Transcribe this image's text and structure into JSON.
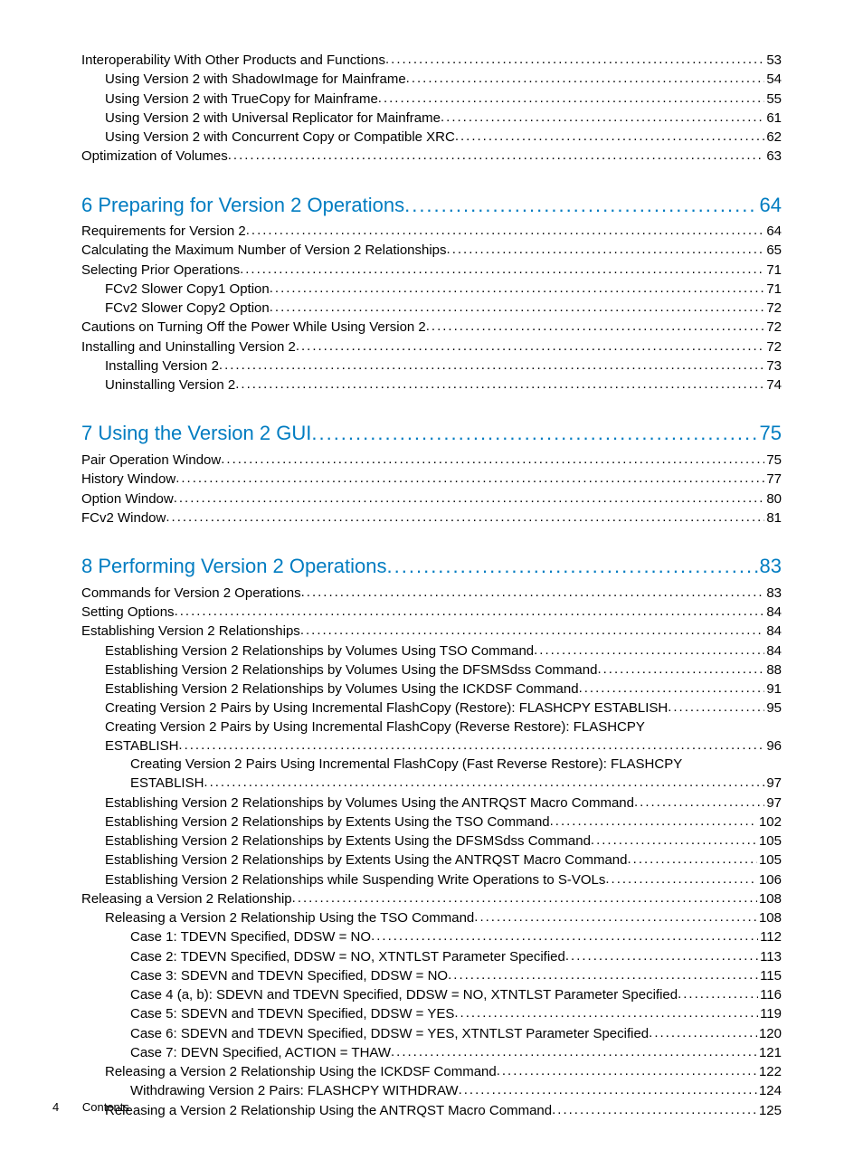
{
  "footer": {
    "page": "4",
    "label": "Contents"
  },
  "colors": {
    "link": "#007cc1",
    "text": "#000000",
    "bg": "#ffffff"
  },
  "entries": [
    {
      "indent": 0,
      "text": "Interoperability With Other Products and Functions",
      "page": "53"
    },
    {
      "indent": 1,
      "text": "Using Version 2 with ShadowImage for Mainframe",
      "page": "54"
    },
    {
      "indent": 1,
      "text": "Using Version 2 with TrueCopy for Mainframe",
      "page": "55"
    },
    {
      "indent": 1,
      "text": "Using Version 2 with Universal Replicator for Mainframe",
      "page": "61"
    },
    {
      "indent": 1,
      "text": "Using Version 2 with Concurrent Copy or Compatible XRC",
      "page": "62"
    },
    {
      "indent": 0,
      "text": "Optimization of Volumes",
      "page": "63"
    },
    {
      "chapter": true,
      "text": "6 Preparing for Version 2 Operations",
      "page": "64"
    },
    {
      "indent": 0,
      "text": "Requirements for Version 2",
      "page": "64"
    },
    {
      "indent": 0,
      "text": "Calculating the Maximum Number of Version 2 Relationships",
      "page": "65"
    },
    {
      "indent": 0,
      "text": "Selecting Prior Operations",
      "page": "71"
    },
    {
      "indent": 1,
      "text": "FCv2 Slower Copy1 Option",
      "page": "71"
    },
    {
      "indent": 1,
      "text": "FCv2 Slower Copy2 Option",
      "page": "72"
    },
    {
      "indent": 0,
      "text": "Cautions on Turning Off the Power While Using Version 2",
      "page": "72"
    },
    {
      "indent": 0,
      "text": "Installing and Uninstalling Version 2",
      "page": "72"
    },
    {
      "indent": 1,
      "text": "Installing Version 2",
      "page": "73"
    },
    {
      "indent": 1,
      "text": "Uninstalling Version 2",
      "page": "74"
    },
    {
      "chapter": true,
      "text": "7 Using the Version 2 GUI",
      "page": "75"
    },
    {
      "indent": 0,
      "text": "Pair Operation Window",
      "page": "75"
    },
    {
      "indent": 0,
      "text": "History Window",
      "page": "77"
    },
    {
      "indent": 0,
      "text": "Option Window",
      "page": "80"
    },
    {
      "indent": 0,
      "text": "FCv2 Window",
      "page": "81"
    },
    {
      "chapter": true,
      "text": "8 Performing Version 2 Operations",
      "page": "83"
    },
    {
      "indent": 0,
      "text": "Commands for Version 2 Operations",
      "page": "83"
    },
    {
      "indent": 0,
      "text": "Setting Options",
      "page": "84"
    },
    {
      "indent": 0,
      "text": "Establishing Version 2 Relationships",
      "page": "84"
    },
    {
      "indent": 1,
      "text": "Establishing Version 2 Relationships by Volumes Using TSO Command",
      "page": "84"
    },
    {
      "indent": 1,
      "text": "Establishing Version 2 Relationships by Volumes Using the DFSMSdss Command",
      "page": "88"
    },
    {
      "indent": 1,
      "text": "Establishing Version 2 Relationships by Volumes Using the ICKDSF Command",
      "page": "91"
    },
    {
      "indent": 1,
      "text": "Creating Version 2 Pairs by Using Incremental FlashCopy (Restore): FLASHCPY ESTABLISH",
      "page": "95"
    },
    {
      "indent": 1,
      "wrap": true,
      "textLines": [
        "Creating Version 2 Pairs by Using Incremental FlashCopy (Reverse Restore): FLASHCPY",
        "ESTABLISH"
      ],
      "page": "96"
    },
    {
      "indent": 2,
      "wrap": true,
      "textLines": [
        "Creating Version 2 Pairs Using Incremental FlashCopy (Fast Reverse Restore): FLASHCPY",
        "ESTABLISH"
      ],
      "page": "97"
    },
    {
      "indent": 1,
      "text": "Establishing Version 2 Relationships by Volumes Using the ANTRQST Macro Command",
      "page": "97"
    },
    {
      "indent": 1,
      "text": "Establishing Version 2 Relationships by Extents Using the TSO Command",
      "page": "102"
    },
    {
      "indent": 1,
      "text": "Establishing Version 2 Relationships by Extents Using the DFSMSdss Command",
      "page": "105"
    },
    {
      "indent": 1,
      "text": "Establishing Version 2 Relationships by Extents Using the ANTRQST Macro Command",
      "page": "105"
    },
    {
      "indent": 1,
      "text": "Establishing Version 2 Relationships while Suspending Write Operations to S-VOLs",
      "page": "106"
    },
    {
      "indent": 0,
      "text": "Releasing a Version 2 Relationship",
      "page": "108"
    },
    {
      "indent": 1,
      "text": "Releasing a Version 2 Relationship Using the TSO Command",
      "page": "108"
    },
    {
      "indent": 2,
      "text": "Case 1: TDEVN Specified, DDSW = NO",
      "page": "112"
    },
    {
      "indent": 2,
      "text": "Case 2: TDEVN Specified, DDSW = NO, XTNTLST Parameter Specified",
      "page": "113"
    },
    {
      "indent": 2,
      "text": "Case 3: SDEVN and TDEVN Specified, DDSW = NO",
      "page": "115"
    },
    {
      "indent": 2,
      "text": "Case 4 (a, b): SDEVN and TDEVN Specified, DDSW = NO, XTNTLST Parameter Specified",
      "page": "116"
    },
    {
      "indent": 2,
      "text": "Case 5: SDEVN and TDEVN Specified, DDSW = YES",
      "page": "119"
    },
    {
      "indent": 2,
      "text": "Case 6: SDEVN and TDEVN Specified, DDSW = YES, XTNTLST Parameter Specified",
      "page": "120"
    },
    {
      "indent": 2,
      "text": "Case 7: DEVN Specified, ACTION = THAW",
      "page": "121"
    },
    {
      "indent": 1,
      "text": "Releasing a Version 2 Relationship Using the ICKDSF Command",
      "page": "122"
    },
    {
      "indent": 2,
      "text": "Withdrawing Version 2 Pairs: FLASHCPY WITHDRAW",
      "page": "124"
    },
    {
      "indent": 1,
      "text": "Releasing a Version 2 Relationship Using the ANTRQST Macro Command",
      "page": "125"
    }
  ]
}
